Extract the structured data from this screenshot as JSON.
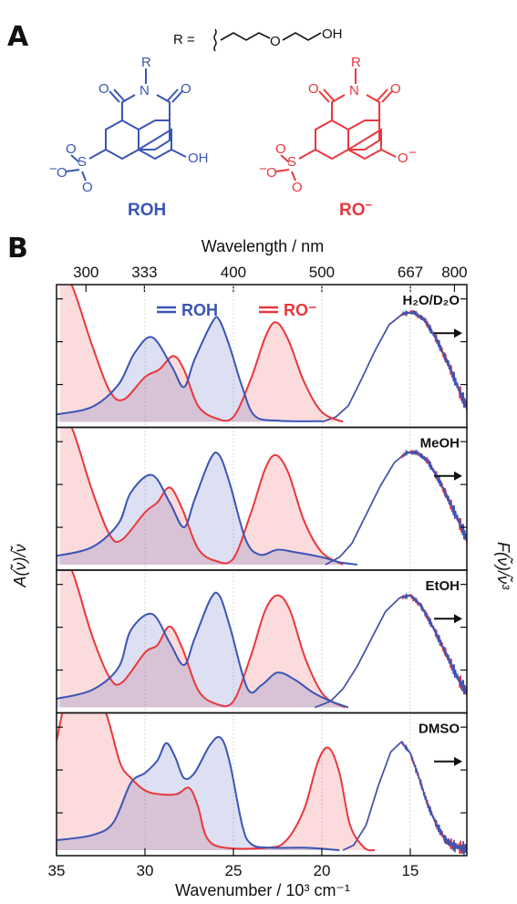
{
  "figure": {
    "panel_a": "A",
    "panel_b": "B",
    "r_group": {
      "prefix": "R =",
      "o": "O",
      "oh": "OH"
    },
    "roh": {
      "label": "ROH",
      "color": "#3b55b5"
    },
    "ro": {
      "label": "RO",
      "sup": "−",
      "color": "#e8383d"
    },
    "atoms": {
      "R": "R",
      "N": "N",
      "O": "O",
      "S": "S",
      "OH": "OH",
      "O_minus": "O",
      "minus": "−"
    }
  },
  "chart_data": {
    "type": "area",
    "top_axis": {
      "title": "Wavelength / nm",
      "ticks": [
        "300",
        "333",
        "400",
        "500",
        "667",
        "800"
      ]
    },
    "x_axis": {
      "title": "Wavenumber / 10³ cm⁻¹",
      "ticks": [
        35,
        30,
        25,
        20,
        15
      ],
      "xlim": [
        35,
        11.8
      ],
      "reversed": true
    },
    "y_left_label": "A(ν̃)/ν̃",
    "y_right_label": "F(ν̃)/ν̃³",
    "legend": [
      {
        "name": "ROH",
        "color": "#3b55b5"
      },
      {
        "name": "RO⁻",
        "color": "#e8383d"
      }
    ],
    "grid": {
      "vertical_lines_at": [
        30,
        25,
        20,
        15
      ]
    },
    "panels": [
      {
        "solvent": "H₂O/D₂O",
        "roh_abs": [
          [
            35,
            0.06
          ],
          [
            33,
            0.12
          ],
          [
            31.5,
            0.3
          ],
          [
            30.6,
            0.55
          ],
          [
            29.6,
            0.68
          ],
          [
            28.5,
            0.45
          ],
          [
            27.8,
            0.28
          ],
          [
            27.2,
            0.5
          ],
          [
            26.2,
            0.8
          ],
          [
            25.8,
            0.82
          ],
          [
            25.2,
            0.6
          ],
          [
            24.5,
            0.28
          ],
          [
            23.8,
            0.05
          ],
          [
            22.5,
            0.01
          ],
          [
            20,
            0.005
          ]
        ],
        "ro_abs": [
          [
            34.8,
            1.3
          ],
          [
            34,
            1.05
          ],
          [
            33,
            0.62
          ],
          [
            32,
            0.25
          ],
          [
            31.2,
            0.18
          ],
          [
            30,
            0.36
          ],
          [
            29.2,
            0.42
          ],
          [
            28.4,
            0.53
          ],
          [
            27.8,
            0.42
          ],
          [
            27,
            0.13
          ],
          [
            26,
            0.03
          ],
          [
            25,
            0.04
          ],
          [
            24,
            0.35
          ],
          [
            23.2,
            0.68
          ],
          [
            22.6,
            0.8
          ],
          [
            21.9,
            0.66
          ],
          [
            21,
            0.32
          ],
          [
            20,
            0.08
          ],
          [
            18.8,
            0.0
          ]
        ],
        "emission": [
          [
            20,
            0.0
          ],
          [
            19.2,
            0.04
          ],
          [
            18.5,
            0.13
          ],
          [
            17.8,
            0.33
          ],
          [
            17,
            0.57
          ],
          [
            16.2,
            0.78
          ],
          [
            15.4,
            0.87
          ],
          [
            14.8,
            0.88
          ],
          [
            14.2,
            0.82
          ],
          [
            13.5,
            0.66
          ],
          [
            12.8,
            0.45
          ],
          [
            12.2,
            0.24
          ],
          [
            11.8,
            0.12
          ]
        ]
      },
      {
        "solvent": "MeOH",
        "roh_abs": [
          [
            35,
            0.07
          ],
          [
            33,
            0.14
          ],
          [
            31.5,
            0.33
          ],
          [
            30.8,
            0.58
          ],
          [
            29.6,
            0.72
          ],
          [
            28.6,
            0.5
          ],
          [
            27.8,
            0.3
          ],
          [
            27.2,
            0.52
          ],
          [
            26.3,
            0.85
          ],
          [
            25.8,
            0.88
          ],
          [
            25.2,
            0.65
          ],
          [
            24.3,
            0.2
          ],
          [
            23.5,
            0.08
          ],
          [
            22.5,
            0.12
          ],
          [
            21.5,
            0.1
          ],
          [
            20,
            0.06
          ],
          [
            19,
            0.02
          ],
          [
            18,
            0.0
          ]
        ],
        "ro_abs": [
          [
            34.8,
            1.3
          ],
          [
            34,
            1.05
          ],
          [
            33,
            0.6
          ],
          [
            32,
            0.24
          ],
          [
            31.3,
            0.2
          ],
          [
            30,
            0.42
          ],
          [
            29.3,
            0.5
          ],
          [
            28.6,
            0.62
          ],
          [
            27.9,
            0.45
          ],
          [
            27,
            0.13
          ],
          [
            26,
            0.03
          ],
          [
            25,
            0.05
          ],
          [
            24,
            0.42
          ],
          [
            23.2,
            0.77
          ],
          [
            22.6,
            0.88
          ],
          [
            21.9,
            0.74
          ],
          [
            21,
            0.35
          ],
          [
            20,
            0.1
          ],
          [
            18.8,
            0.0
          ]
        ],
        "emission": [
          [
            19.8,
            0.0
          ],
          [
            19,
            0.06
          ],
          [
            18.3,
            0.17
          ],
          [
            17.5,
            0.4
          ],
          [
            16.7,
            0.63
          ],
          [
            15.9,
            0.82
          ],
          [
            15.2,
            0.9
          ],
          [
            14.6,
            0.9
          ],
          [
            14,
            0.83
          ],
          [
            13.3,
            0.66
          ],
          [
            12.6,
            0.45
          ],
          [
            12,
            0.27
          ],
          [
            11.8,
            0.2
          ]
        ]
      },
      {
        "solvent": "EtOH",
        "roh_abs": [
          [
            35,
            0.07
          ],
          [
            33,
            0.14
          ],
          [
            31.5,
            0.32
          ],
          [
            30.8,
            0.62
          ],
          [
            29.6,
            0.75
          ],
          [
            28.6,
            0.52
          ],
          [
            27.8,
            0.34
          ],
          [
            27.2,
            0.55
          ],
          [
            26.3,
            0.87
          ],
          [
            25.8,
            0.9
          ],
          [
            25.2,
            0.65
          ],
          [
            24.2,
            0.15
          ],
          [
            23.4,
            0.18
          ],
          [
            22.5,
            0.28
          ],
          [
            21.5,
            0.22
          ],
          [
            20.5,
            0.12
          ],
          [
            19.5,
            0.05
          ],
          [
            18.5,
            0.0
          ]
        ],
        "ro_abs": [
          [
            34.8,
            1.3
          ],
          [
            34,
            1.05
          ],
          [
            33,
            0.58
          ],
          [
            32,
            0.24
          ],
          [
            31.3,
            0.2
          ],
          [
            30,
            0.44
          ],
          [
            29.3,
            0.5
          ],
          [
            28.6,
            0.65
          ],
          [
            27.9,
            0.48
          ],
          [
            27,
            0.14
          ],
          [
            26,
            0.03
          ],
          [
            25,
            0.05
          ],
          [
            24,
            0.42
          ],
          [
            23.2,
            0.78
          ],
          [
            22.5,
            0.9
          ],
          [
            21.8,
            0.78
          ],
          [
            20.9,
            0.38
          ],
          [
            19.9,
            0.1
          ],
          [
            18.7,
            0.0
          ]
        ],
        "emission": [
          [
            20.4,
            0.0
          ],
          [
            19.5,
            0.05
          ],
          [
            18.8,
            0.15
          ],
          [
            18,
            0.33
          ],
          [
            17.2,
            0.55
          ],
          [
            16.4,
            0.77
          ],
          [
            15.6,
            0.88
          ],
          [
            15,
            0.9
          ],
          [
            14.4,
            0.82
          ],
          [
            13.7,
            0.64
          ],
          [
            13,
            0.44
          ],
          [
            12.3,
            0.23
          ],
          [
            11.8,
            0.12
          ]
        ]
      },
      {
        "solvent": "DMSO",
        "roh_abs": [
          [
            35,
            0.08
          ],
          [
            33,
            0.12
          ],
          [
            31.8,
            0.22
          ],
          [
            30.8,
            0.54
          ],
          [
            30,
            0.62
          ],
          [
            29.3,
            0.72
          ],
          [
            28.8,
            0.86
          ],
          [
            28.3,
            0.75
          ],
          [
            27.8,
            0.58
          ],
          [
            27.2,
            0.62
          ],
          [
            26.3,
            0.85
          ],
          [
            25.7,
            0.9
          ],
          [
            25.2,
            0.7
          ],
          [
            24.5,
            0.2
          ],
          [
            24,
            0.05
          ],
          [
            23,
            0.02
          ],
          [
            21,
            0.02
          ],
          [
            19,
            0.0
          ]
        ],
        "ro_abs": [
          [
            35,
            0.88
          ],
          [
            34.4,
            1.25
          ],
          [
            33.8,
            1.3
          ],
          [
            33,
            1.3
          ],
          [
            32.2,
            1.1
          ],
          [
            31.4,
            0.7
          ],
          [
            30.8,
            0.58
          ],
          [
            30,
            0.48
          ],
          [
            29.2,
            0.45
          ],
          [
            28.2,
            0.45
          ],
          [
            27.5,
            0.5
          ],
          [
            27,
            0.35
          ],
          [
            26.5,
            0.1
          ],
          [
            25.5,
            0.02
          ],
          [
            23,
            0.02
          ],
          [
            22,
            0.08
          ],
          [
            21,
            0.33
          ],
          [
            20.2,
            0.72
          ],
          [
            19.6,
            0.82
          ],
          [
            19,
            0.62
          ],
          [
            18.4,
            0.2
          ],
          [
            17.6,
            0.02
          ],
          [
            17,
            0.0
          ]
        ],
        "emission": [
          [
            18.8,
            0.0
          ],
          [
            18.2,
            0.04
          ],
          [
            17.5,
            0.2
          ],
          [
            16.8,
            0.52
          ],
          [
            16.1,
            0.79
          ],
          [
            15.5,
            0.87
          ],
          [
            15,
            0.78
          ],
          [
            14.5,
            0.58
          ],
          [
            14,
            0.36
          ],
          [
            13.5,
            0.2
          ],
          [
            13,
            0.08
          ],
          [
            12.5,
            0.03
          ],
          [
            11.8,
            0.01
          ]
        ]
      }
    ]
  }
}
